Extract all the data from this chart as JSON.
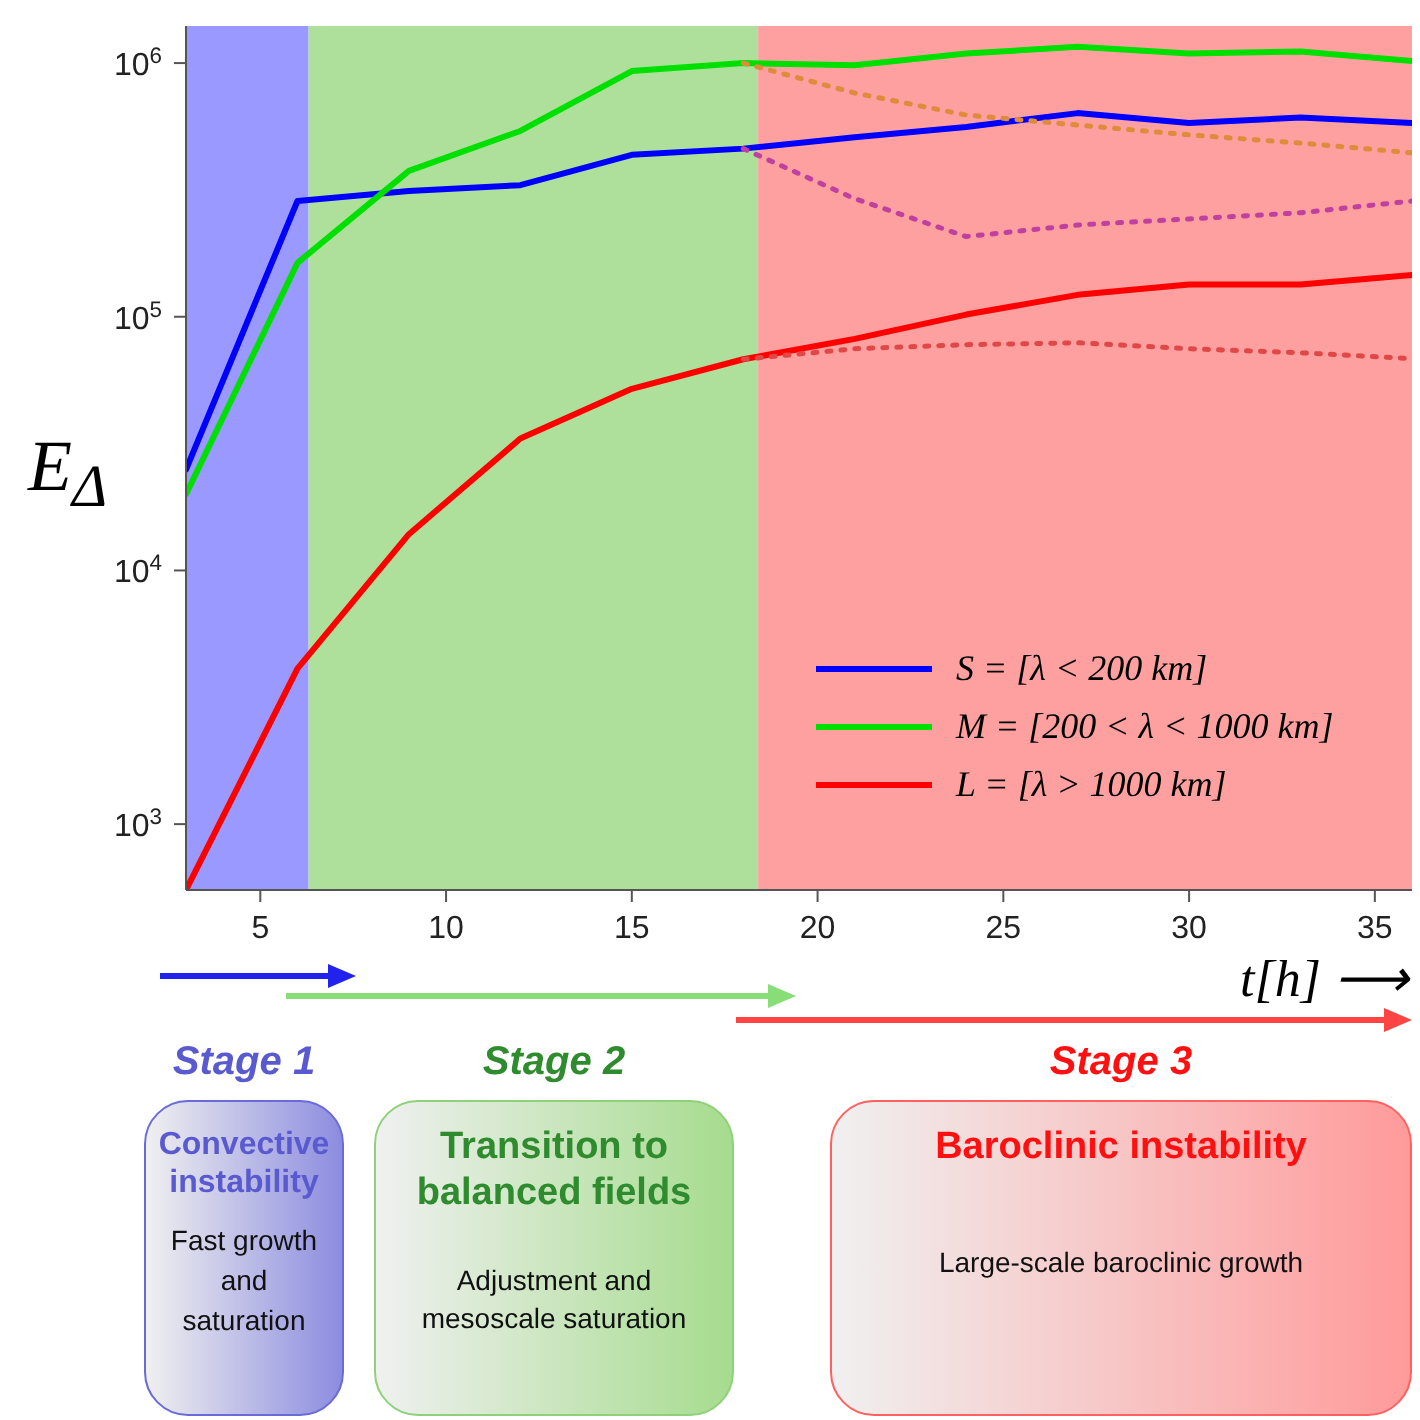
{
  "chart_data": {
    "type": "line",
    "xlabel": "t[h] ⟶",
    "ylabel": "E$_{Δ}$",
    "x": [
      3,
      6,
      9,
      12,
      15,
      18,
      21,
      24,
      27,
      30,
      33,
      36
    ],
    "xlim": [
      3,
      36
    ],
    "xticks": [
      5,
      10,
      15,
      20,
      25,
      30,
      35
    ],
    "ylim": [
      550,
      1400000
    ],
    "yticks": [
      {
        "value": 1000,
        "label": "10$^{3}$"
      },
      {
        "value": 10000,
        "label": "10$^{4}$"
      },
      {
        "value": 100000,
        "label": "10$^{5}$"
      },
      {
        "value": 1000000,
        "label": "10$^{6}$"
      }
    ],
    "log": "y",
    "legend": "bottom right",
    "line_style": "solid",
    "series": [
      {
        "name": "S = [λ < 200 km]",
        "color": "#0000ff",
        "values": [
          25000,
          286000,
          313000,
          330000,
          435000,
          460000,
          510000,
          560000,
          635000,
          580000,
          610000,
          580000
        ]
      },
      {
        "name": "M = [200 < λ < 1000 km]",
        "color": "#00e000",
        "values": [
          20000,
          163000,
          376000,
          540000,
          930000,
          1000000,
          980000,
          1090000,
          1160000,
          1090000,
          1110000,
          1020000
        ]
      },
      {
        "name": "L = [λ > 1000 km]",
        "color": "#ff0000",
        "values": [
          550,
          4100,
          13900,
          33100,
          52000,
          68000,
          81800,
          102000,
          122000,
          134000,
          134000,
          146000
        ]
      },
      {
        "color": "#e08a3c",
        "line_style": "dotted",
        "x": [
          18,
          21,
          24,
          27,
          30,
          33,
          36
        ],
        "values": [
          1000000,
          762000,
          624000,
          570000,
          521000,
          484000,
          443000
        ]
      },
      {
        "color": "#c040a0",
        "line_style": "dotted",
        "x": [
          18,
          21,
          24,
          27,
          30,
          33,
          36
        ],
        "values": [
          460000,
          292000,
          207000,
          230000,
          243000,
          257000,
          286000
        ]
      },
      {
        "color": "#e04848",
        "line_style": "dotted",
        "x": [
          18,
          21,
          24,
          27,
          30,
          33,
          36
        ],
        "values": [
          68000,
          74800,
          77600,
          79000,
          74800,
          72100,
          68400
        ]
      }
    ],
    "bands": [
      {
        "axis": "x",
        "from": 3,
        "to": 6.3,
        "color": "#9999ff"
      },
      {
        "axis": "x",
        "from": 6.3,
        "to": 18.4,
        "color": "#aee09b"
      },
      {
        "axis": "x",
        "from": 18.4,
        "to": 36,
        "color": "#ffa0a0"
      }
    ],
    "annotations": [
      "Stage 1",
      "Convective instability",
      "Fast growth and saturation",
      "Stage 2",
      "Transition to balanced fields",
      "Adjustment and mesoscale saturation",
      "Stage 3",
      "Baroclinic instability",
      "Large-scale baroclinic growth"
    ]
  }
}
